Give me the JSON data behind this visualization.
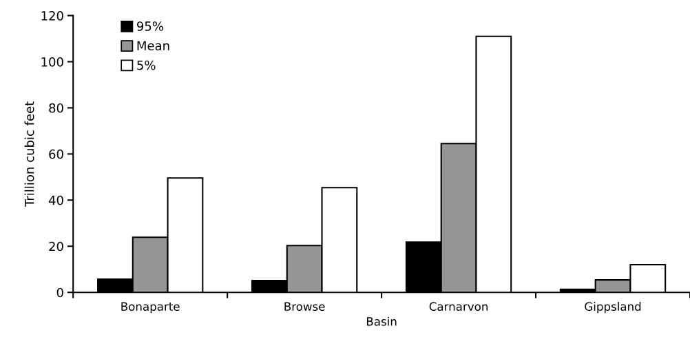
{
  "chart_data": {
    "type": "bar",
    "xlabel": "Basin",
    "ylabel": "Trillion cubic feet",
    "categories": [
      "Bonaparte",
      "Browse",
      "Carnarvon",
      "Gippsland"
    ],
    "series": [
      {
        "name": "95%",
        "color": "#000000",
        "values": [
          5.7,
          5.1,
          21.8,
          1.3
        ]
      },
      {
        "name": "Mean",
        "color": "#969696",
        "values": [
          23.9,
          20.3,
          64.5,
          5.4
        ]
      },
      {
        "name": "5%",
        "color": "#ffffff",
        "values": [
          49.6,
          45.4,
          111,
          12.0
        ]
      }
    ],
    "ylim": [
      0,
      120
    ],
    "yticks": [
      0,
      20,
      40,
      60,
      80,
      100,
      120
    ],
    "grid": false,
    "legend": "top left"
  }
}
